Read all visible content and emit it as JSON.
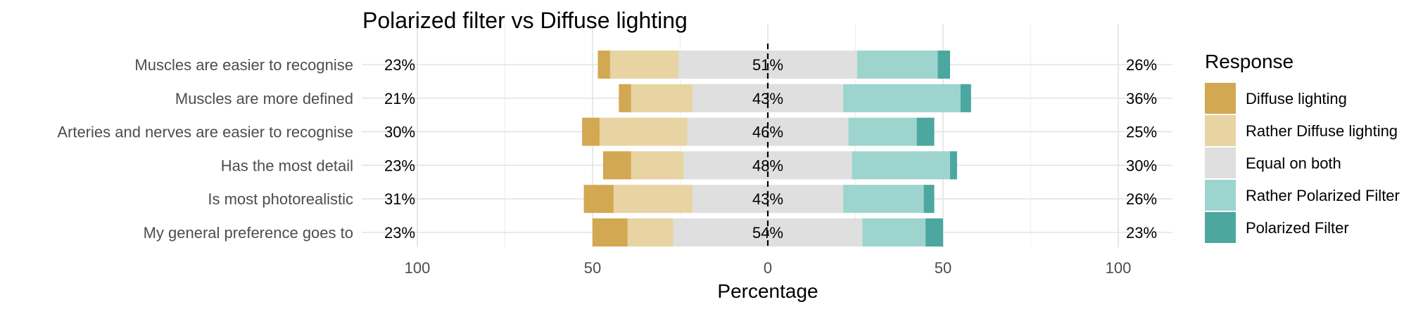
{
  "chart_data": {
    "type": "bar",
    "orientation": "horizontal",
    "stacking": "diverging",
    "title": "Polarized filter vs Diffuse lighting",
    "xlabel": "Percentage",
    "ylabel": "",
    "xlim": [
      -100,
      100
    ],
    "x_ticks": [
      -100,
      -50,
      0,
      50,
      100
    ],
    "x_tick_labels": [
      "100",
      "50",
      "0",
      "50",
      "100"
    ],
    "grid": true,
    "legend_title": "Response",
    "legend_position": "right",
    "colors": {
      "Diffuse lighting": "#D3A852",
      "Rather Diffuse lighting": "#E8D3A2",
      "Equal on both": "#DFDFDF",
      "Rather Polarized Filter": "#9ED4CE",
      "Polarized Filter": "#4BA79F"
    },
    "series_order": [
      "Diffuse lighting",
      "Rather Diffuse lighting",
      "Equal on both",
      "Rather Polarized Filter",
      "Polarized Filter"
    ],
    "categories": [
      "Muscles are easier to recognise",
      "Muscles are more defined",
      "Arteries and nerves are easier to recognise",
      "Has the most detail",
      "Is most photorealistic",
      "My general preference goes to"
    ],
    "series": [
      {
        "name": "Diffuse lighting",
        "values": [
          3.5,
          3.5,
          5,
          8,
          8.5,
          10
        ]
      },
      {
        "name": "Rather Diffuse lighting",
        "values": [
          19.5,
          17.5,
          25,
          15,
          22.5,
          13
        ]
      },
      {
        "name": "Equal on both",
        "values": [
          51,
          43,
          46,
          48,
          43,
          54
        ]
      },
      {
        "name": "Rather Polarized Filter",
        "values": [
          23,
          33.5,
          19.5,
          28,
          23,
          18
        ]
      },
      {
        "name": "Polarized Filter",
        "values": [
          3.5,
          3,
          5,
          2,
          3,
          5
        ]
      }
    ],
    "left_labels": [
      "23%",
      "21%",
      "30%",
      "23%",
      "31%",
      "23%"
    ],
    "center_labels": [
      "51%",
      "43%",
      "46%",
      "48%",
      "43%",
      "54%"
    ],
    "right_labels": [
      "26%",
      "36%",
      "25%",
      "30%",
      "26%",
      "23%"
    ]
  }
}
